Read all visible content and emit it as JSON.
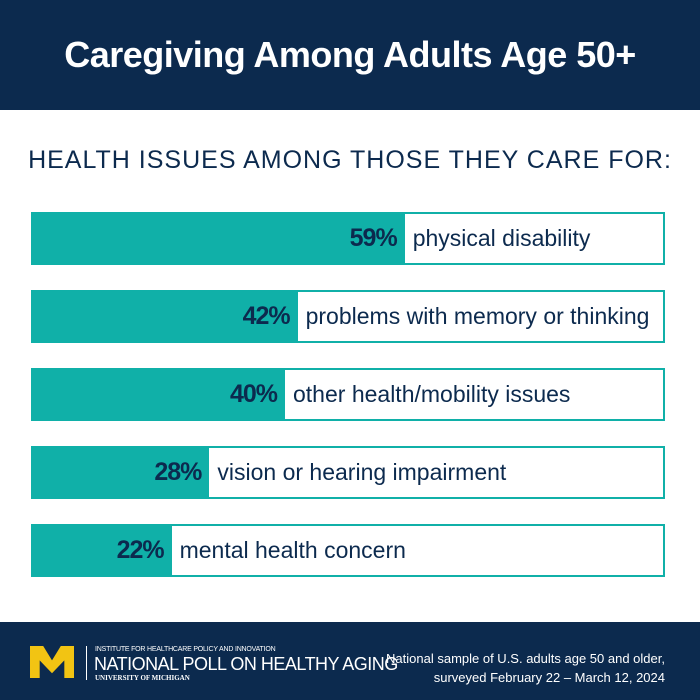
{
  "header": {
    "title": "Caregiving Among Adults Age 50+"
  },
  "chart_data": {
    "type": "bar",
    "title": "HEALTH ISSUES AMONG THOSE THEY CARE FOR:",
    "orientation": "horizontal",
    "categories": [
      "physical disability",
      "problems with memory or thinking",
      "other health/mobility issues",
      "vision or hearing impairment",
      "mental health concern"
    ],
    "values": [
      59,
      42,
      40,
      28,
      22
    ],
    "value_labels": [
      "59%",
      "42%",
      "40%",
      "28%",
      "22%"
    ],
    "xlim": [
      0,
      100
    ],
    "colors": {
      "fill": "#10b0a8",
      "text": "#0c2a4e"
    }
  },
  "footer": {
    "logo_text": "M",
    "institute": "INSTITUTE FOR HEALTHCARE POLICY AND INNOVATION",
    "poll_name": "NATIONAL POLL ON HEALTHY AGING",
    "university": "UNIVERSITY OF MICHIGAN",
    "note_line1": "National sample of U.S. adults age 50 and older,",
    "note_line2": "surveyed February 22 – March 12, 2024"
  }
}
